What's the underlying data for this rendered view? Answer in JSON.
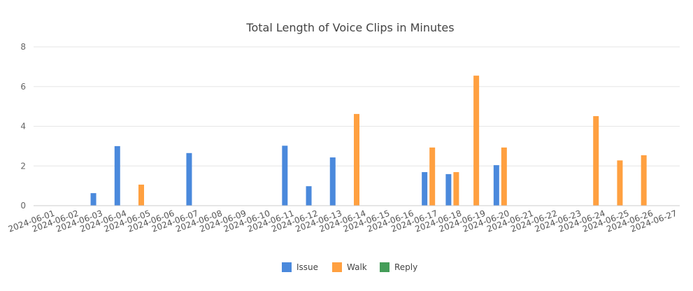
{
  "chart_data": {
    "type": "bar",
    "title": "Total Length of Voice Clips in Minutes",
    "xlabel": "",
    "ylabel": "",
    "ylim": [
      0,
      8
    ],
    "yticks": [
      0,
      2,
      4,
      6,
      8
    ],
    "grid": true,
    "legend_position": "bottom",
    "categories": [
      "2024-06-01",
      "2024-06-02",
      "2024-06-03",
      "2024-06-04",
      "2024-06-05",
      "2024-06-06",
      "2024-06-07",
      "2024-06-08",
      "2024-06-09",
      "2024-06-10",
      "2024-06-11",
      "2024-06-12",
      "2024-06-13",
      "2024-06-14",
      "2024-06-15",
      "2024-06-16",
      "2024-06-17",
      "2024-06-18",
      "2024-06-19",
      "2024-06-20",
      "2024-06-21",
      "2024-06-22",
      "2024-06-23",
      "2024-06-24",
      "2024-06-25",
      "2024-06-26",
      "2024-06-27"
    ],
    "series": [
      {
        "name": "Issue",
        "color": "#4a89dc",
        "values": [
          null,
          null,
          0.63,
          3.0,
          null,
          null,
          2.65,
          null,
          null,
          null,
          3.02,
          0.98,
          2.43,
          null,
          null,
          null,
          1.69,
          1.59,
          null,
          2.04,
          null,
          null,
          null,
          null,
          null,
          null,
          null
        ]
      },
      {
        "name": "Walk",
        "color": "#ffa040",
        "values": [
          null,
          null,
          null,
          null,
          1.06,
          null,
          null,
          null,
          null,
          null,
          null,
          null,
          null,
          4.62,
          null,
          null,
          2.93,
          1.69,
          6.55,
          2.93,
          null,
          null,
          null,
          4.51,
          2.28,
          2.54,
          null
        ]
      },
      {
        "name": "Reply",
        "color": "#449d58",
        "values": [
          null,
          null,
          null,
          null,
          null,
          null,
          null,
          null,
          null,
          null,
          null,
          null,
          null,
          null,
          null,
          null,
          null,
          null,
          null,
          null,
          null,
          null,
          null,
          null,
          null,
          null,
          null
        ]
      }
    ]
  }
}
